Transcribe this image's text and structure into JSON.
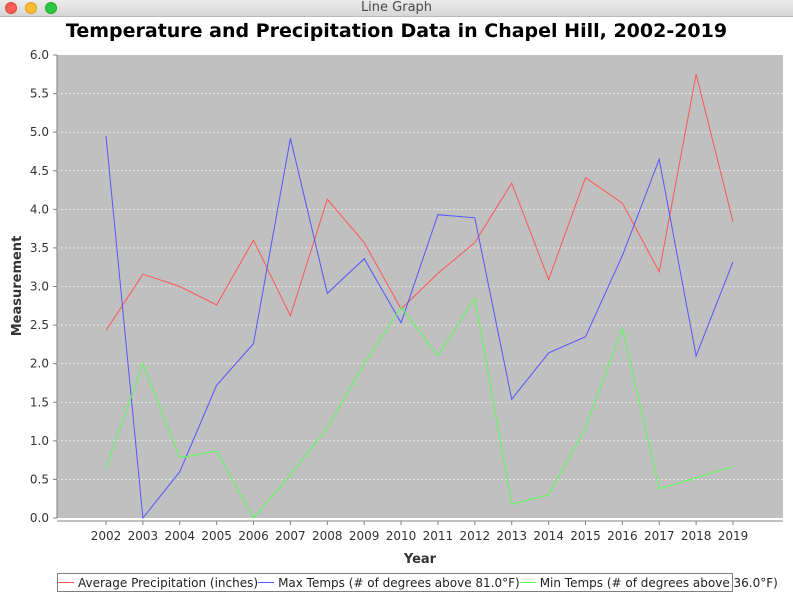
{
  "window": {
    "title": "Line Graph"
  },
  "chart_data": {
    "type": "line",
    "title": "Temperature and Precipitation Data in Chapel Hill, 2002-2019",
    "xlabel": "Year",
    "ylabel": "Measurement",
    "x": [
      "2002",
      "2003",
      "2004",
      "2005",
      "2006",
      "2007",
      "2008",
      "2009",
      "2010",
      "2011",
      "2012",
      "2013",
      "2014",
      "2015",
      "2016",
      "2017",
      "2018",
      "2019"
    ],
    "ylim": [
      0,
      6.0
    ],
    "yticks": [
      "0.0",
      "0.5",
      "1.0",
      "1.5",
      "2.0",
      "2.5",
      "3.0",
      "3.5",
      "4.0",
      "4.5",
      "5.0",
      "5.5",
      "6.0"
    ],
    "grid": true,
    "legend_position": "bottom",
    "series": [
      {
        "name": "Average Precipitation (inches)",
        "color": "#ff5555",
        "values": [
          2.43,
          3.16,
          3.0,
          2.76,
          3.6,
          2.62,
          4.13,
          3.57,
          2.71,
          3.17,
          3.57,
          4.34,
          3.09,
          4.41,
          4.08,
          3.19,
          5.75,
          3.84
        ]
      },
      {
        "name": "Max Temps (# of degrees above 81.0°F)",
        "color": "#5555ff",
        "values": [
          4.95,
          0.0,
          0.6,
          1.72,
          2.26,
          4.92,
          2.91,
          3.36,
          2.53,
          3.93,
          3.89,
          1.54,
          2.14,
          2.35,
          3.4,
          4.65,
          2.1,
          3.32
        ]
      },
      {
        "name": "Min Temps (# of degrees above 36.0°F)",
        "color": "#55ff55",
        "values": [
          0.65,
          2.0,
          0.78,
          0.87,
          0.0,
          0.56,
          1.17,
          2.0,
          2.73,
          2.1,
          2.85,
          0.18,
          0.3,
          1.17,
          2.46,
          0.38,
          0.52,
          0.67
        ]
      }
    ]
  }
}
